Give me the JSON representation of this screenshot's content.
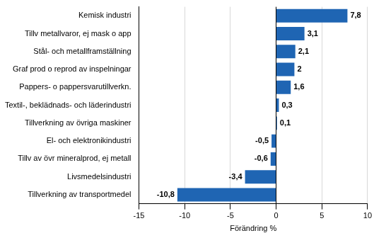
{
  "chart_data": {
    "type": "bar",
    "orientation": "horizontal",
    "categories": [
      "Kemisk industri",
      "Tillv metallvaror, ej mask o app",
      "Stål- och metallframställning",
      "Graf prod o reprod av inspelningar",
      "Pappers- o pappersvarutillverkn.",
      "Textil-, beklädnads- och läderindustri",
      "Tillverkning av övriga maskiner",
      "El- och elektronikindustri",
      "Tillv av övr mineralprod, ej metall",
      "Livsmedelsindustri",
      "Tillverkning av transportmedel"
    ],
    "values": [
      7.8,
      3.1,
      2.1,
      2,
      1.6,
      0.3,
      0.1,
      -0.5,
      -0.6,
      -3.4,
      -10.8
    ],
    "value_labels": [
      "7,8",
      "3,1",
      "2,1",
      "2",
      "1,6",
      "0,3",
      "0,1",
      "-0,5",
      "-0,6",
      "-3,4",
      "-10,8"
    ],
    "data_labels": true,
    "color": "#1f65b3",
    "xlabel": "Förändring %",
    "xlim": [
      -15,
      10
    ],
    "xticks": [
      -15,
      -10,
      -5,
      0,
      5,
      10
    ],
    "grid": true
  }
}
